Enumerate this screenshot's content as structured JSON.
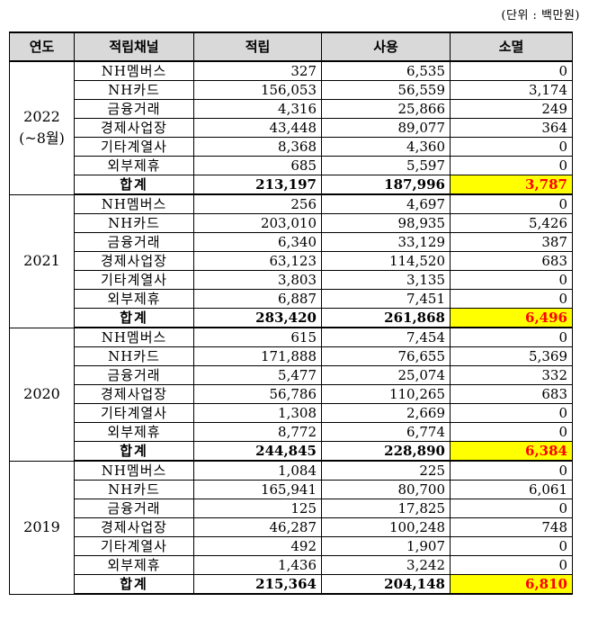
{
  "unit_label": "(단위 : 백만원)",
  "headers": [
    "연도",
    "적립채널",
    "적립",
    "사용",
    "소멸"
  ],
  "years": [
    {
      "year": "2022",
      "year_note": "(~8월)",
      "rows": [
        {
          "channel": "NH멤버스",
          "earn": "327",
          "use": "6,535",
          "expire": "0"
        },
        {
          "channel": "NH카드",
          "earn": "156,053",
          "use": "56,559",
          "expire": "3,174"
        },
        {
          "channel": "금융거래",
          "earn": "4,316",
          "use": "25,866",
          "expire": "249"
        },
        {
          "channel": "경제사업장",
          "earn": "43,448",
          "use": "89,077",
          "expire": "364"
        },
        {
          "channel": "기타계열사",
          "earn": "8,368",
          "use": "4,360",
          "expire": "0"
        },
        {
          "channel": "외부제휴",
          "earn": "685",
          "use": "5,597",
          "expire": "0"
        }
      ],
      "total": {
        "channel": "합계",
        "earn": "213,197",
        "use": "187,996",
        "expire": "3,787"
      }
    },
    {
      "year": "2021",
      "year_note": "",
      "rows": [
        {
          "channel": "NH멤버스",
          "earn": "256",
          "use": "4,697",
          "expire": "0"
        },
        {
          "channel": "NH카드",
          "earn": "203,010",
          "use": "98,935",
          "expire": "5,426"
        },
        {
          "channel": "금융거래",
          "earn": "6,340",
          "use": "33,129",
          "expire": "387"
        },
        {
          "channel": "경제사업장",
          "earn": "63,123",
          "use": "114,520",
          "expire": "683"
        },
        {
          "channel": "기타계열사",
          "earn": "3,803",
          "use": "3,135",
          "expire": "0"
        },
        {
          "channel": "외부제휴",
          "earn": "6,887",
          "use": "7,451",
          "expire": "0"
        }
      ],
      "total": {
        "channel": "합계",
        "earn": "283,420",
        "use": "261,868",
        "expire": "6,496"
      }
    },
    {
      "year": "2020",
      "year_note": "",
      "rows": [
        {
          "channel": "NH멤버스",
          "earn": "615",
          "use": "7,454",
          "expire": "0"
        },
        {
          "channel": "NH카드",
          "earn": "171,888",
          "use": "76,655",
          "expire": "5,369"
        },
        {
          "channel": "금융거래",
          "earn": "5,477",
          "use": "25,074",
          "expire": "332"
        },
        {
          "channel": "경제사업장",
          "earn": "56,786",
          "use": "110,265",
          "expire": "683"
        },
        {
          "channel": "기타계열사",
          "earn": "1,308",
          "use": "2,669",
          "expire": "0"
        },
        {
          "channel": "외부제휴",
          "earn": "8,772",
          "use": "6,774",
          "expire": "0"
        }
      ],
      "total": {
        "channel": "합계",
        "earn": "244,845",
        "use": "228,890",
        "expire": "6,384"
      }
    },
    {
      "year": "2019",
      "year_note": "",
      "rows": [
        {
          "channel": "NH멤버스",
          "earn": "1,084",
          "use": "225",
          "expire": "0"
        },
        {
          "channel": "NH카드",
          "earn": "165,941",
          "use": "80,700",
          "expire": "6,061"
        },
        {
          "channel": "금융거래",
          "earn": "125",
          "use": "17,825",
          "expire": "0"
        },
        {
          "channel": "경제사업장",
          "earn": "46,287",
          "use": "100,248",
          "expire": "748"
        },
        {
          "channel": "기타계열사",
          "earn": "492",
          "use": "1,907",
          "expire": "0"
        },
        {
          "channel": "외부제휴",
          "earn": "1,436",
          "use": "3,242",
          "expire": "0"
        }
      ],
      "total": {
        "channel": "합계",
        "earn": "215,364",
        "use": "204,148",
        "expire": "6,810"
      }
    }
  ],
  "colors": {
    "header_bg": "#d9d9d9",
    "highlight_bg": "#ffff00",
    "highlight_text": "#ff0000"
  }
}
